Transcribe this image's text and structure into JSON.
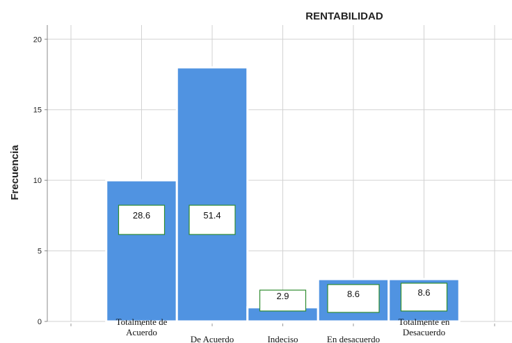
{
  "chart_data": {
    "type": "bar",
    "title": "RENTABILIDAD",
    "xlabel": "",
    "ylabel": "Frecuencia",
    "ylim": [
      0,
      21
    ],
    "yticks": [
      0,
      5,
      10,
      15,
      20
    ],
    "grid": true,
    "categories": [
      [
        "Totalmente de",
        "Acuerdo"
      ],
      [
        "De Acuerdo"
      ],
      [
        "Indeciso"
      ],
      [
        "En desacuerdo"
      ],
      [
        "Totalmente en",
        "Desacuerdo"
      ]
    ],
    "values": [
      10,
      18,
      1,
      3,
      3
    ],
    "data_labels": [
      "28.6",
      "51.4",
      "2.9",
      "8.6",
      "8.6"
    ],
    "colors": {
      "bar": "#5093e1",
      "bar_border": "#ffffff",
      "grid": "#d2d2d2",
      "label_box_border": "#2e8b2e",
      "label_box_fill": "#ffffff"
    }
  }
}
